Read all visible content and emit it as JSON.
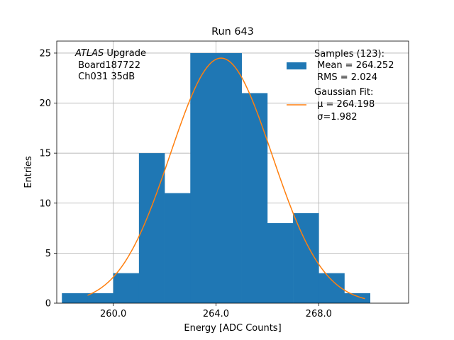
{
  "chart_data": {
    "type": "bar",
    "title": "Run 643",
    "xlabel": "Energy [ADC Counts]",
    "ylabel": "Entries",
    "xlim": [
      257.8,
      271.5
    ],
    "ylim": [
      0,
      26.2
    ],
    "grid": true,
    "xticks": [
      260.0,
      264.0,
      268.0
    ],
    "xtick_labels": [
      "260.0",
      "264.0",
      "268.0"
    ],
    "yticks": [
      0,
      5,
      10,
      15,
      20,
      25
    ],
    "ytick_labels": [
      "0",
      "5",
      "10",
      "15",
      "20",
      "25"
    ],
    "annotation": {
      "italic": "ATLAS",
      "rest": " Upgrade",
      "line2": " Board187722",
      "line3": " Ch031 35dB"
    },
    "histogram": {
      "name": "Samples (123):",
      "color": "#1f77b4",
      "bin_edges": [
        258,
        259,
        260,
        261,
        262,
        263,
        264,
        265,
        266,
        267,
        268,
        269,
        270
      ],
      "counts": [
        1,
        1,
        3,
        15,
        11,
        25,
        25,
        21,
        8,
        9,
        3,
        1
      ]
    },
    "fit": {
      "name": "Gaussian Fit:",
      "color": "#ff7f0e",
      "mu": 264.198,
      "sigma": 1.982,
      "amplitude": 24.5,
      "x_range": [
        259,
        269.8
      ]
    },
    "legend": {
      "position": "top-right",
      "hist_lines": [
        "Samples (123):",
        " Mean = 264.252",
        " RMS = 2.024"
      ],
      "fit_lines": [
        "Gaussian Fit:",
        " μ = 264.198",
        " σ=1.982"
      ]
    }
  }
}
